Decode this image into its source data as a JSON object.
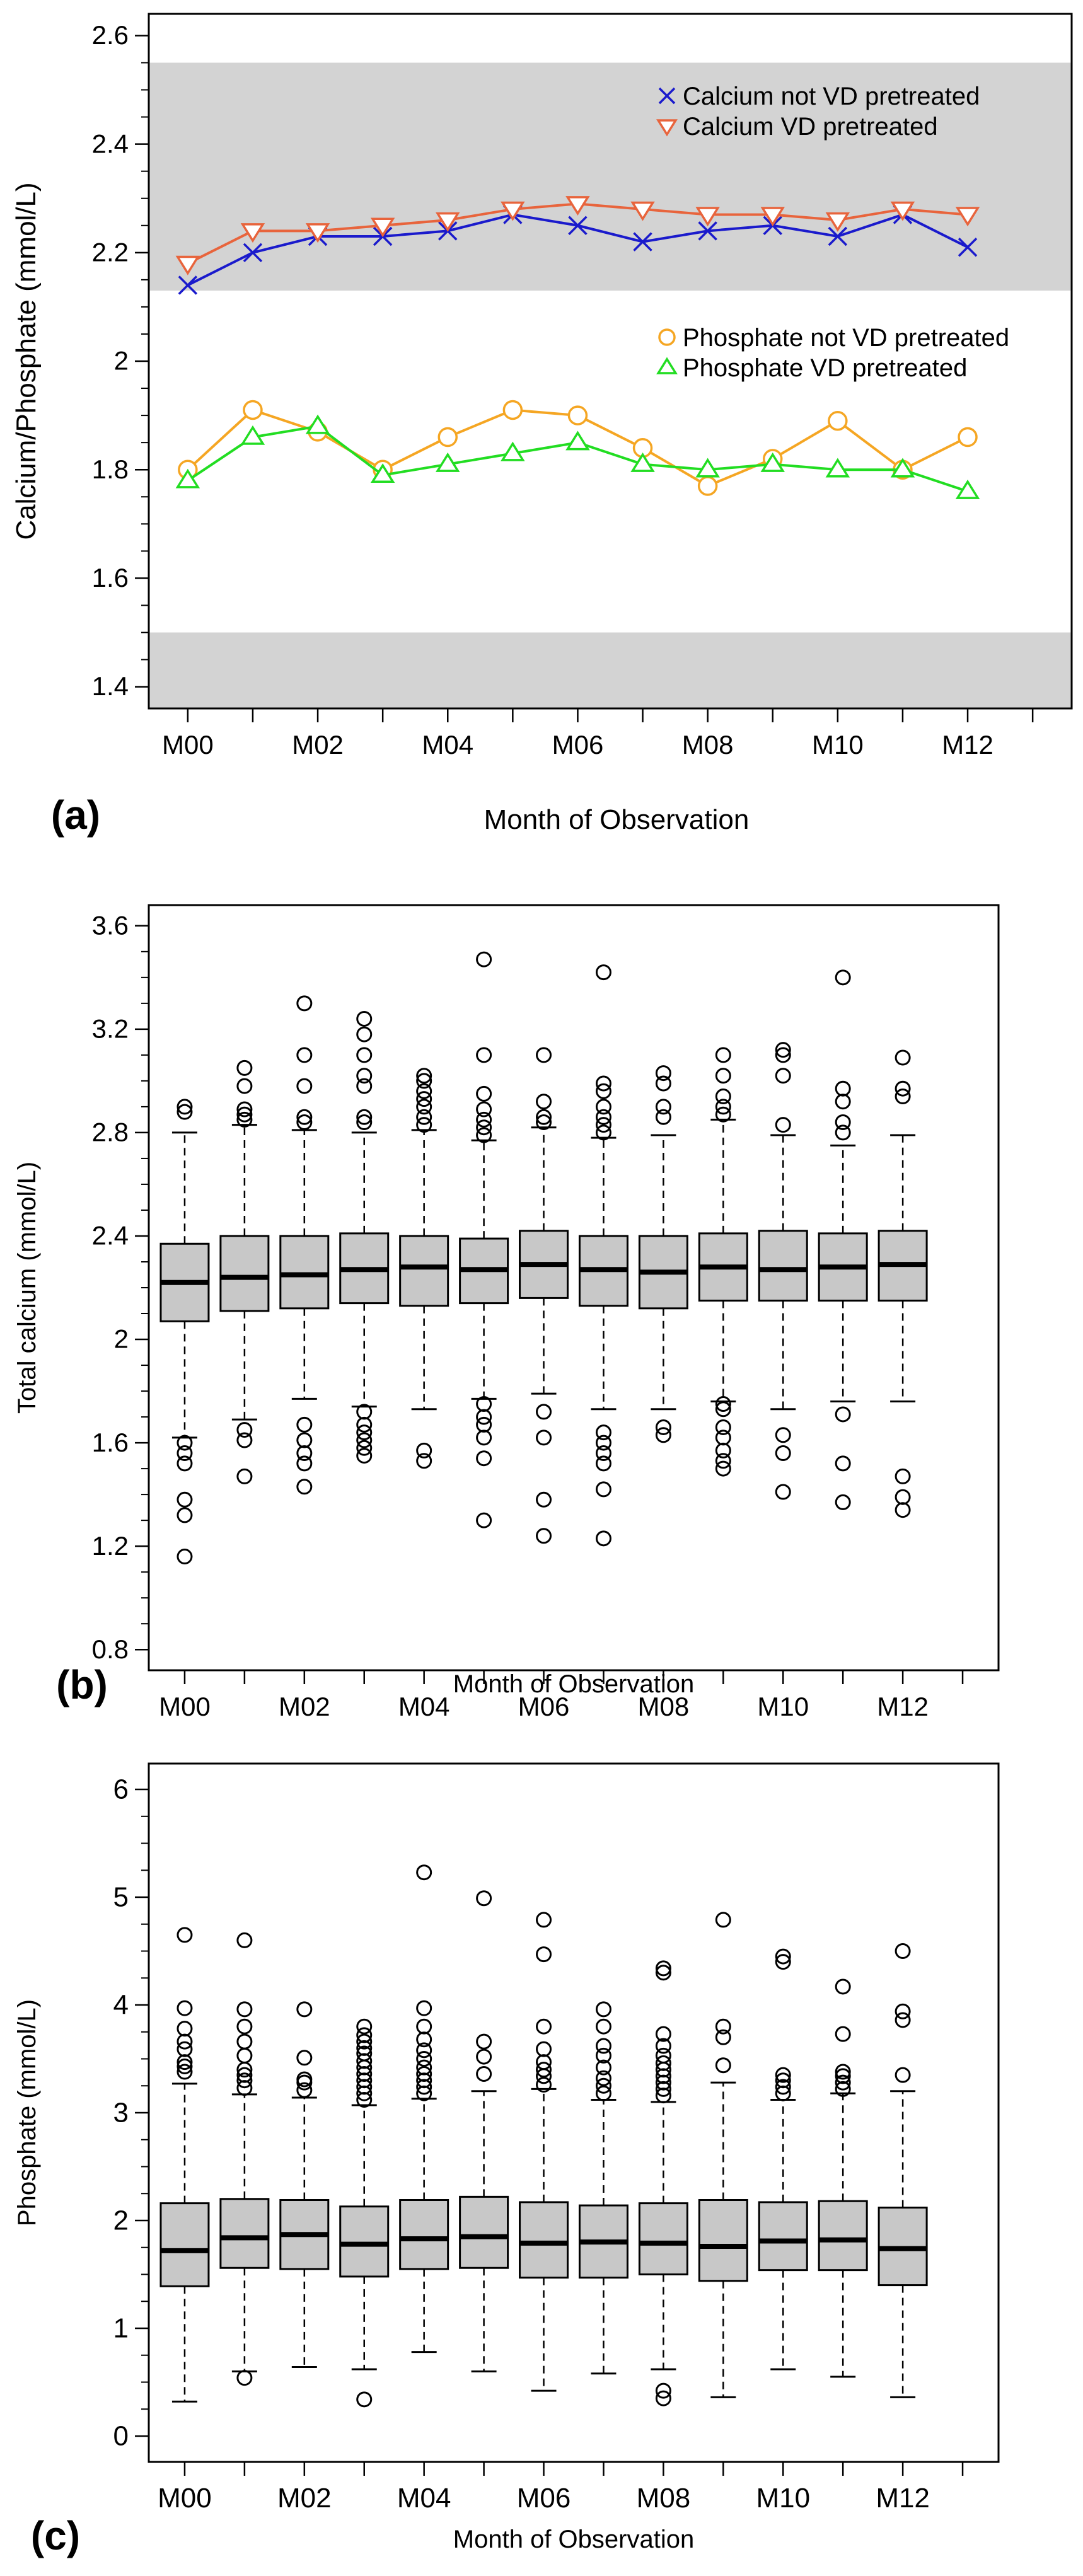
{
  "chart_data": [
    {
      "panel_label": "(a)",
      "type": "line",
      "xlabel": "Month of Observation",
      "ylabel": "Calcium/Phosphate (mmol/L)",
      "xlim": [
        -0.6,
        13.6
      ],
      "ylim": [
        1.36,
        2.64
      ],
      "x": [
        0,
        1,
        2,
        3,
        4,
        5,
        6,
        7,
        8,
        9,
        10,
        11,
        12
      ],
      "x_tick_positions": [
        0,
        2,
        4,
        6,
        8,
        10,
        12
      ],
      "x_tick_labels": [
        "M00",
        "M02",
        "M04",
        "M06",
        "M08",
        "M10",
        "M12"
      ],
      "x_minor_ticks": [
        1,
        3,
        5,
        7,
        9,
        11,
        13
      ],
      "y_ticks": [
        1.4,
        1.6,
        1.8,
        2,
        2.2,
        2.4,
        2.6
      ],
      "y_tick_labels": [
        "1.4",
        "1.6",
        "1.8",
        "2",
        "2.2",
        "2.4",
        "2.6"
      ],
      "reference_bands": [
        {
          "from": 2.13,
          "to": 2.55,
          "color": "#d3d3d3"
        },
        {
          "from": 1.36,
          "to": 1.5,
          "color": "#d3d3d3"
        }
      ],
      "legends": [
        {
          "placement": "top-right",
          "entries": [
            0,
            1
          ]
        },
        {
          "placement": "middle-right",
          "entries": [
            2,
            3
          ]
        }
      ],
      "series": [
        {
          "name": "Calcium not VD pretreated",
          "marker": "x",
          "color": "#1a1acc",
          "values": [
            2.14,
            2.2,
            2.23,
            2.23,
            2.24,
            2.27,
            2.25,
            2.22,
            2.24,
            2.25,
            2.23,
            2.27,
            2.21
          ]
        },
        {
          "name": "Calcium VD pretreated",
          "marker": "triangle-down",
          "color": "#e8643c",
          "values": [
            2.18,
            2.24,
            2.24,
            2.25,
            2.26,
            2.28,
            2.29,
            2.28,
            2.27,
            2.27,
            2.26,
            2.28,
            2.27
          ]
        },
        {
          "name": "Phosphate not VD pretreated",
          "marker": "circle",
          "color": "#f5a623",
          "values": [
            1.8,
            1.91,
            1.87,
            1.8,
            1.86,
            1.91,
            1.9,
            1.84,
            1.77,
            1.82,
            1.89,
            1.8,
            1.86
          ]
        },
        {
          "name": "Phosphate VD pretreated",
          "marker": "triangle-up",
          "color": "#22dd22",
          "values": [
            1.78,
            1.86,
            1.88,
            1.79,
            1.81,
            1.83,
            1.85,
            1.81,
            1.8,
            1.81,
            1.8,
            1.8,
            1.76
          ]
        }
      ]
    },
    {
      "panel_label": "(b)",
      "type": "boxplot",
      "xlabel": "Month of Observation",
      "ylabel": "Total calcium (mmol/L)",
      "xlim": [
        -0.6,
        13.6
      ],
      "ylim": [
        0.72,
        3.68
      ],
      "x_tick_positions": [
        0,
        2,
        4,
        6,
        8,
        10,
        12
      ],
      "x_tick_labels": [
        "M00",
        "M02",
        "M04",
        "M06",
        "M08",
        "M10",
        "M12"
      ],
      "x_minor_ticks": [
        1,
        3,
        5,
        7,
        9,
        11,
        13
      ],
      "y_ticks": [
        0.8,
        1.2,
        1.6,
        2,
        2.4,
        2.8,
        3.2,
        3.6
      ],
      "y_tick_labels": [
        "0.8",
        "1.2",
        "1.6",
        "2",
        "2.4",
        "2.8",
        "3.2",
        "3.6"
      ],
      "box_color": "#c8c8c8",
      "boxes": [
        {
          "x": 0,
          "q1": 2.07,
          "median": 2.22,
          "q3": 2.37,
          "whisker_low": 1.62,
          "whisker_high": 2.8,
          "outliers": [
            1.16,
            1.32,
            1.38,
            1.52,
            1.56,
            1.6,
            2.88,
            2.9
          ]
        },
        {
          "x": 1,
          "q1": 2.11,
          "median": 2.24,
          "q3": 2.4,
          "whisker_low": 1.69,
          "whisker_high": 2.83,
          "outliers": [
            1.47,
            1.61,
            1.65,
            2.85,
            2.87,
            2.89,
            2.98,
            3.05
          ]
        },
        {
          "x": 2,
          "q1": 2.12,
          "median": 2.25,
          "q3": 2.4,
          "whisker_low": 1.77,
          "whisker_high": 2.81,
          "outliers": [
            1.43,
            1.52,
            1.56,
            1.61,
            1.67,
            2.84,
            2.86,
            2.98,
            3.1,
            3.3
          ]
        },
        {
          "x": 3,
          "q1": 2.14,
          "median": 2.27,
          "q3": 2.41,
          "whisker_low": 1.74,
          "whisker_high": 2.8,
          "outliers": [
            1.55,
            1.58,
            1.61,
            1.64,
            1.67,
            1.72,
            2.84,
            2.86,
            2.98,
            3.02,
            3.1,
            3.18,
            3.24
          ]
        },
        {
          "x": 4,
          "q1": 2.13,
          "median": 2.28,
          "q3": 2.4,
          "whisker_low": 1.73,
          "whisker_high": 2.81,
          "outliers": [
            1.53,
            1.57,
            2.83,
            2.86,
            2.9,
            2.93,
            2.96,
            3.0,
            3.02
          ]
        },
        {
          "x": 5,
          "q1": 2.14,
          "median": 2.27,
          "q3": 2.39,
          "whisker_low": 1.77,
          "whisker_high": 2.77,
          "outliers": [
            1.3,
            1.54,
            1.62,
            1.67,
            1.7,
            1.75,
            2.79,
            2.82,
            2.85,
            2.89,
            2.95,
            3.1,
            3.47
          ]
        },
        {
          "x": 6,
          "q1": 2.16,
          "median": 2.29,
          "q3": 2.42,
          "whisker_low": 1.79,
          "whisker_high": 2.82,
          "outliers": [
            1.24,
            1.38,
            1.62,
            1.72,
            2.84,
            2.86,
            2.92,
            3.1
          ]
        },
        {
          "x": 7,
          "q1": 2.13,
          "median": 2.27,
          "q3": 2.4,
          "whisker_low": 1.73,
          "whisker_high": 2.78,
          "outliers": [
            1.23,
            1.42,
            1.52,
            1.56,
            1.6,
            1.64,
            2.8,
            2.83,
            2.86,
            2.9,
            2.96,
            2.99,
            3.42
          ]
        },
        {
          "x": 8,
          "q1": 2.12,
          "median": 2.26,
          "q3": 2.4,
          "whisker_low": 1.73,
          "whisker_high": 2.79,
          "outliers": [
            1.63,
            1.66,
            2.86,
            2.9,
            2.99,
            3.03
          ]
        },
        {
          "x": 9,
          "q1": 2.15,
          "median": 2.28,
          "q3": 2.41,
          "whisker_low": 1.76,
          "whisker_high": 2.85,
          "outliers": [
            1.5,
            1.53,
            1.57,
            1.62,
            1.66,
            1.73,
            1.75,
            2.87,
            2.9,
            2.94,
            3.02,
            3.1
          ]
        },
        {
          "x": 10,
          "q1": 2.15,
          "median": 2.27,
          "q3": 2.42,
          "whisker_low": 1.73,
          "whisker_high": 2.79,
          "outliers": [
            1.41,
            1.56,
            1.63,
            2.83,
            3.02,
            3.1,
            3.12
          ]
        },
        {
          "x": 11,
          "q1": 2.15,
          "median": 2.28,
          "q3": 2.41,
          "whisker_low": 1.76,
          "whisker_high": 2.75,
          "outliers": [
            1.37,
            1.52,
            1.71,
            2.8,
            2.84,
            2.92,
            2.97,
            3.4
          ]
        },
        {
          "x": 12,
          "q1": 2.15,
          "median": 2.29,
          "q3": 2.42,
          "whisker_low": 1.76,
          "whisker_high": 2.79,
          "outliers": [
            1.34,
            1.39,
            1.47,
            2.94,
            2.97,
            3.09
          ]
        }
      ]
    },
    {
      "panel_label": "(c)",
      "type": "boxplot",
      "xlabel": "Month of Observation",
      "ylabel": "Phosphate (mmol/L)",
      "xlim": [
        -0.6,
        13.6
      ],
      "ylim": [
        -0.24,
        6.24
      ],
      "x_tick_positions": [
        0,
        2,
        4,
        6,
        8,
        10,
        12
      ],
      "x_tick_labels": [
        "M00",
        "M02",
        "M04",
        "M06",
        "M08",
        "M10",
        "M12"
      ],
      "x_minor_ticks": [
        1,
        3,
        5,
        7,
        9,
        11,
        13
      ],
      "y_ticks": [
        0,
        1,
        2,
        3,
        4,
        5,
        6
      ],
      "y_tick_labels": [
        "0",
        "1",
        "2",
        "3",
        "4",
        "5",
        "6"
      ],
      "box_color": "#c8c8c8",
      "boxes": [
        {
          "x": 0,
          "q1": 1.39,
          "median": 1.72,
          "q3": 2.16,
          "whisker_low": 0.32,
          "whisker_high": 3.27,
          "outliers": [
            3.38,
            3.43,
            3.47,
            3.59,
            3.66,
            3.78,
            3.97,
            4.65
          ]
        },
        {
          "x": 1,
          "q1": 1.56,
          "median": 1.84,
          "q3": 2.2,
          "whisker_low": 0.6,
          "whisker_high": 3.17,
          "outliers": [
            0.54,
            3.23,
            3.3,
            3.35,
            3.4,
            3.53,
            3.66,
            3.8,
            3.96,
            4.6
          ]
        },
        {
          "x": 2,
          "q1": 1.55,
          "median": 1.87,
          "q3": 2.19,
          "whisker_low": 0.64,
          "whisker_high": 3.14,
          "outliers": [
            3.21,
            3.28,
            3.31,
            3.51,
            3.96
          ]
        },
        {
          "x": 3,
          "q1": 1.48,
          "median": 1.78,
          "q3": 2.13,
          "whisker_low": 0.62,
          "whisker_high": 3.07,
          "outliers": [
            0.34,
            3.12,
            3.18,
            3.24,
            3.3,
            3.36,
            3.42,
            3.48,
            3.55,
            3.6,
            3.66,
            3.72,
            3.8
          ]
        },
        {
          "x": 4,
          "q1": 1.55,
          "median": 1.83,
          "q3": 2.19,
          "whisker_low": 0.78,
          "whisker_high": 3.13,
          "outliers": [
            3.18,
            3.24,
            3.3,
            3.36,
            3.42,
            3.5,
            3.58,
            3.68,
            3.8,
            3.97,
            5.23
          ]
        },
        {
          "x": 5,
          "q1": 1.56,
          "median": 1.85,
          "q3": 2.22,
          "whisker_low": 0.6,
          "whisker_high": 3.2,
          "outliers": [
            3.36,
            3.52,
            3.66,
            4.99
          ]
        },
        {
          "x": 6,
          "q1": 1.47,
          "median": 1.79,
          "q3": 2.17,
          "whisker_low": 0.42,
          "whisker_high": 3.22,
          "outliers": [
            3.26,
            3.34,
            3.4,
            3.47,
            3.59,
            3.8,
            4.47,
            4.79
          ]
        },
        {
          "x": 7,
          "q1": 1.47,
          "median": 1.8,
          "q3": 2.14,
          "whisker_low": 0.58,
          "whisker_high": 3.12,
          "outliers": [
            3.18,
            3.25,
            3.32,
            3.42,
            3.53,
            3.62,
            3.8,
            3.96
          ]
        },
        {
          "x": 8,
          "q1": 1.5,
          "median": 1.79,
          "q3": 2.16,
          "whisker_low": 0.62,
          "whisker_high": 3.1,
          "outliers": [
            0.35,
            0.42,
            3.16,
            3.22,
            3.28,
            3.34,
            3.4,
            3.46,
            3.53,
            3.62,
            3.73,
            4.3,
            4.34
          ]
        },
        {
          "x": 9,
          "q1": 1.44,
          "median": 1.76,
          "q3": 2.19,
          "whisker_low": 0.36,
          "whisker_high": 3.28,
          "outliers": [
            3.44,
            3.7,
            3.8,
            4.79
          ]
        },
        {
          "x": 10,
          "q1": 1.54,
          "median": 1.81,
          "q3": 2.17,
          "whisker_low": 0.62,
          "whisker_high": 3.12,
          "outliers": [
            3.18,
            3.24,
            3.3,
            3.35,
            4.4,
            4.45
          ]
        },
        {
          "x": 11,
          "q1": 1.54,
          "median": 1.82,
          "q3": 2.18,
          "whisker_low": 0.55,
          "whisker_high": 3.18,
          "outliers": [
            3.22,
            3.28,
            3.34,
            3.38,
            3.73,
            4.17
          ]
        },
        {
          "x": 12,
          "q1": 1.4,
          "median": 1.74,
          "q3": 2.12,
          "whisker_low": 0.36,
          "whisker_high": 3.2,
          "outliers": [
            3.35,
            3.86,
            3.94,
            4.5
          ]
        }
      ]
    }
  ]
}
